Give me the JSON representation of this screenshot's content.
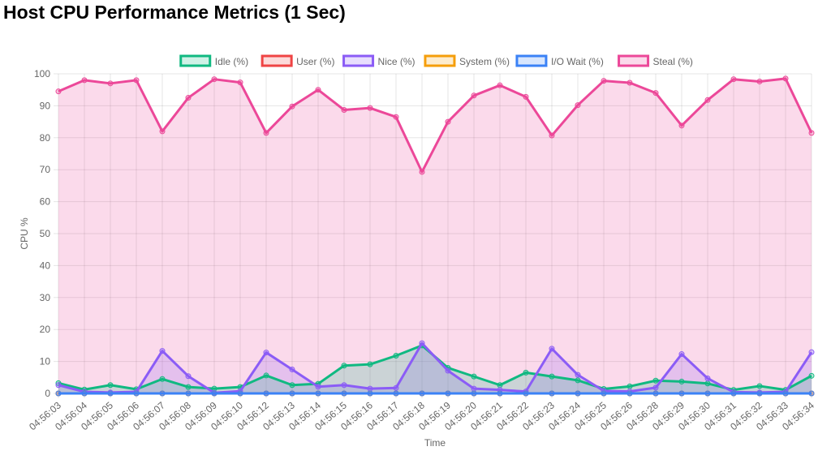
{
  "title": "Host CPU Performance Metrics (1 Sec)",
  "chart_data": {
    "type": "line",
    "title": "Host CPU Performance Metrics (1 Sec)",
    "xlabel": "Time",
    "ylabel": "CPU %",
    "ylim": [
      0,
      100
    ],
    "yticks": [
      0,
      10,
      20,
      30,
      40,
      50,
      60,
      70,
      80,
      90,
      100
    ],
    "grid": true,
    "legend_position": "top-center",
    "x": [
      "04:56:03",
      "04:56:04",
      "04:56:05",
      "04:56:06",
      "04:56:07",
      "04:56:08",
      "04:56:09",
      "04:56:10",
      "04:56:12",
      "04:56:13",
      "04:56:14",
      "04:56:15",
      "04:56:16",
      "04:56:17",
      "04:56:18",
      "04:56:19",
      "04:56:20",
      "04:56:21",
      "04:56:22",
      "04:56:23",
      "04:56:24",
      "04:56:25",
      "04:56:26",
      "04:56:28",
      "04:56:29",
      "04:56:30",
      "04:56:31",
      "04:56:32",
      "04:56:33",
      "04:56:34"
    ],
    "series": [
      {
        "name": "Idle (%)",
        "color": "#10b981",
        "values": [
          3.2,
          1.2,
          2.6,
          1.3,
          4.5,
          2,
          1.5,
          2,
          5.6,
          2.6,
          3,
          8.7,
          9.1,
          11.8,
          15,
          8,
          5.3,
          2.6,
          6.5,
          5.3,
          4.1,
          1.4,
          2.2,
          4,
          3.7,
          3.1,
          1.1,
          2.3,
          1.1,
          5.5
        ]
      },
      {
        "name": "User (%)",
        "color": "#ef4444",
        "values": [
          0,
          0,
          0,
          0,
          0,
          0,
          0,
          0,
          0,
          0,
          0,
          0,
          0,
          0,
          0,
          0,
          0,
          0,
          0,
          0,
          0,
          0,
          0,
          0,
          0,
          0,
          0,
          0,
          0,
          0
        ]
      },
      {
        "name": "Nice (%)",
        "color": "#8b5cf6",
        "values": [
          2.6,
          0.5,
          0.3,
          0.5,
          13.3,
          5.4,
          0.2,
          0.7,
          12.8,
          7.5,
          2.1,
          2.6,
          1.5,
          1.7,
          15.7,
          7.1,
          1.5,
          1.1,
          0.6,
          14,
          5.8,
          0.8,
          0.6,
          1.8,
          12.3,
          4.7,
          0.4,
          0.3,
          0.5,
          12.9
        ]
      },
      {
        "name": "System (%)",
        "color": "#f59e0b",
        "values": [
          0,
          0,
          0,
          0,
          0,
          0,
          0,
          0,
          0,
          0,
          0,
          0,
          0,
          0,
          0,
          0,
          0,
          0,
          0,
          0,
          0,
          0,
          0,
          0,
          0,
          0,
          0,
          0,
          0,
          0
        ]
      },
      {
        "name": "I/O Wait (%)",
        "color": "#3b82f6",
        "values": [
          0,
          0,
          0,
          0,
          0,
          0,
          0,
          0,
          0,
          0,
          0,
          0,
          0,
          0,
          0,
          0,
          0,
          0,
          0,
          0,
          0,
          0,
          0,
          0,
          0,
          0,
          0,
          0,
          0,
          0
        ]
      },
      {
        "name": "Steal (%)",
        "color": "#ec4899",
        "values": [
          94.5,
          98,
          97,
          98,
          82,
          92.5,
          98.3,
          97.3,
          81.5,
          89.8,
          95,
          88.7,
          89.3,
          86.5,
          69.3,
          85,
          93.2,
          96.4,
          92.8,
          80.7,
          90.2,
          97.8,
          97.2,
          94,
          83.8,
          91.8,
          98.3,
          97.6,
          98.5,
          81.5
        ]
      }
    ]
  }
}
